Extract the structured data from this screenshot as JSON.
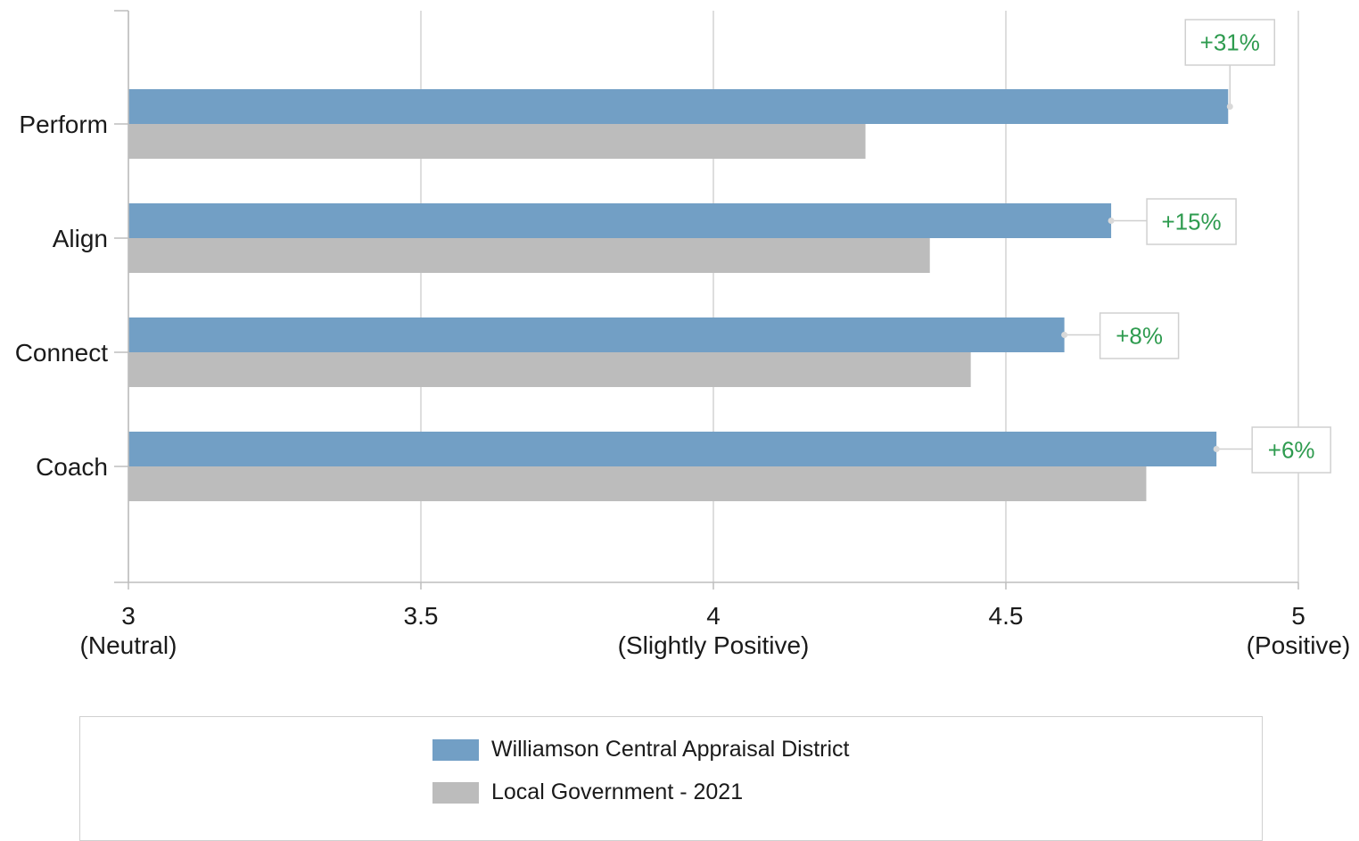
{
  "chart_data": {
    "type": "bar",
    "orientation": "horizontal",
    "categories": [
      "Perform",
      "Align",
      "Connect",
      "Coach"
    ],
    "series": [
      {
        "name": "Williamson Central Appraisal District",
        "color": "#729fc5",
        "values": [
          4.88,
          4.68,
          4.6,
          4.86
        ]
      },
      {
        "name": "Local Government - 2021",
        "color": "#bcbcbc",
        "values": [
          4.26,
          4.37,
          4.44,
          4.74
        ]
      }
    ],
    "annotations": [
      "+31%",
      "+15%",
      "+8%",
      "+6%"
    ],
    "annotation_color": "#2e9b4f",
    "x_ticks": [
      {
        "value": 3,
        "label": "3",
        "sublabel": "(Neutral)"
      },
      {
        "value": 3.5,
        "label": "3.5",
        "sublabel": ""
      },
      {
        "value": 4,
        "label": "4",
        "sublabel": "(Slightly Positive)"
      },
      {
        "value": 4.5,
        "label": "4.5",
        "sublabel": ""
      },
      {
        "value": 5,
        "label": "5",
        "sublabel": "(Positive)"
      }
    ],
    "xlim": [
      3,
      5
    ],
    "grid": true,
    "legend_position": "bottom"
  },
  "legend": {
    "items": [
      {
        "label": "Williamson Central Appraisal District",
        "color": "#729fc5"
      },
      {
        "label": "Local Government - 2021",
        "color": "#bcbcbc"
      }
    ]
  }
}
